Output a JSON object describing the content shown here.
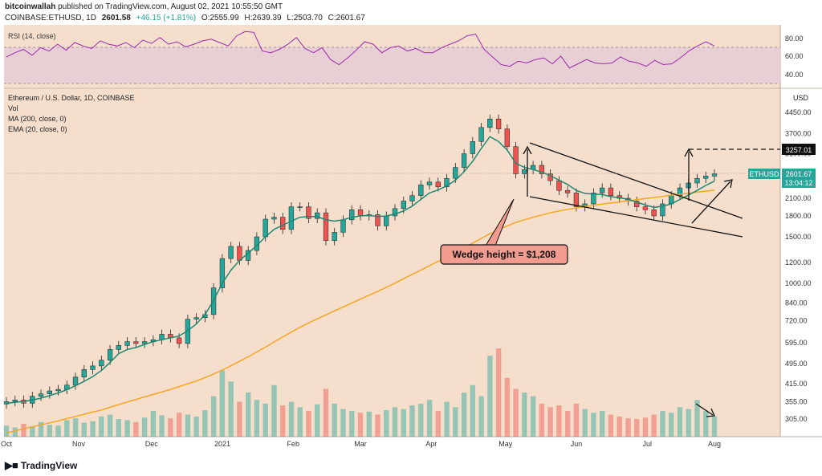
{
  "header": {
    "author": "bitcoinwallah",
    "published": "published on TradingView.com, August 02, 2021 10:55:50 GMT",
    "symbol_line": "COINBASE:ETHUSD, 1D",
    "last": "2601.58",
    "change": "+46.15 (+1.81%)",
    "ohlc_open": "O:2555.99",
    "ohlc_high": "H:2639.39",
    "ohlc_low": "L:2503.70",
    "ohlc_close": "C:2601.67"
  },
  "rsi_panel": {
    "label": "RSI (14, close)",
    "ticks": [
      "80.00",
      "60.00",
      "40.00"
    ]
  },
  "main_panel": {
    "title": "Ethereum / U.S. Dollar, 1D, COINBASE",
    "indicators": [
      "Vol",
      "MA (200, close, 0)",
      "EMA (20, close, 0)"
    ],
    "currency": "USD"
  },
  "annotations": {
    "wedge_label": "Wedge height = $1,208",
    "target_label": "3257.01",
    "price_tag": "ETHUSD",
    "price_value": "2601.67",
    "countdown": "13:04:12"
  },
  "footer": {
    "brand": "TradingView",
    "logo": "tradingview-logo-icon"
  },
  "colors": {
    "background": "#f5dfcc",
    "up": "#26a69a",
    "down": "#ef5350",
    "ema": "#1b8a72",
    "ma200": "#f5a623",
    "rsi": "#9c27b0",
    "label_box": "#f29b8f"
  },
  "chart_data": [
    {
      "type": "line",
      "title": "RSI (14, close)",
      "ylim": [
        20,
        90
      ],
      "y_ticks": [
        80,
        60,
        40
      ],
      "series": [
        {
          "values": [
            55,
            60,
            64,
            57,
            66,
            62,
            70,
            63,
            72,
            68,
            65,
            74,
            70,
            68,
            72,
            66,
            75,
            71,
            78,
            70,
            73,
            67,
            70,
            74,
            76,
            72,
            68,
            80,
            85,
            84,
            62,
            60,
            64,
            70,
            78,
            65,
            60,
            66,
            52,
            46,
            54,
            63,
            73,
            70,
            60,
            66,
            68,
            62,
            65,
            60,
            60,
            66,
            70,
            74,
            80,
            82,
            64,
            55,
            46,
            44,
            50,
            48,
            52,
            54,
            47,
            56,
            42,
            47,
            52,
            48,
            47,
            48,
            55,
            50,
            48,
            44,
            51,
            46,
            47,
            54,
            62,
            68,
            73,
            68
          ]
        }
      ]
    },
    {
      "type": "candlestick",
      "title": "Ethereum / U.S. Dollar, 1D, COINBASE",
      "x_ticks": [
        "Oct",
        "Nov",
        "Dec",
        "2021",
        "Feb",
        "Mar",
        "Apr",
        "May",
        "Jun",
        "Jul",
        "Aug"
      ],
      "y_ticks": [
        4450,
        3700,
        3100,
        2600,
        2100,
        1800,
        1500,
        1200,
        1000,
        840,
        720,
        595,
        495,
        415,
        355,
        305
      ],
      "scale": "log",
      "closes": [
        355,
        360,
        350,
        372,
        380,
        390,
        395,
        410,
        440,
        470,
        485,
        510,
        560,
        580,
        600,
        590,
        600,
        610,
        640,
        620,
        590,
        730,
        740,
        760,
        960,
        1240,
        1380,
        1220,
        1330,
        1500,
        1750,
        1780,
        1600,
        1950,
        1950,
        1760,
        1850,
        1450,
        1560,
        1740,
        1900,
        1800,
        1820,
        1650,
        1800,
        1920,
        2050,
        2150,
        2360,
        2420,
        2320,
        2500,
        2750,
        3100,
        3450,
        3900,
        4200,
        3850,
        3300,
        2600,
        2700,
        2800,
        2600,
        2450,
        2250,
        2200,
        1950,
        2000,
        2200,
        2300,
        2150,
        2100,
        2050,
        1950,
        1900,
        1800,
        2000,
        2150,
        2300,
        2400,
        2500,
        2550,
        2602
      ],
      "ema20": [
        350,
        353,
        356,
        360,
        366,
        374,
        383,
        394,
        408,
        424,
        442,
        466,
        500,
        540,
        560,
        570,
        585,
        600,
        610,
        620,
        630,
        660,
        700,
        760,
        860,
        1000,
        1120,
        1220,
        1300,
        1390,
        1500,
        1600,
        1660,
        1720,
        1780,
        1790,
        1790,
        1740,
        1720,
        1740,
        1780,
        1800,
        1810,
        1790,
        1800,
        1830,
        1880,
        1960,
        2080,
        2200,
        2260,
        2340,
        2460,
        2650,
        2900,
        3250,
        3600,
        3450,
        3200,
        2850,
        2750,
        2700,
        2640,
        2560,
        2460,
        2370,
        2250,
        2190,
        2180,
        2170,
        2130,
        2110,
        2080,
        2030,
        1980,
        1940,
        1960,
        2000,
        2080,
        2160,
        2250,
        2350,
        2440
      ],
      "ma200": [
        270,
        275,
        280,
        285,
        290,
        295,
        300,
        306,
        312,
        318,
        324,
        330,
        338,
        346,
        354,
        362,
        370,
        378,
        386,
        395,
        405,
        415,
        425,
        438,
        452,
        468,
        486,
        505,
        525,
        548,
        572,
        598,
        625,
        652,
        680,
        706,
        732,
        758,
        785,
        812,
        840,
        870,
        900,
        930,
        965,
        1000,
        1040,
        1080,
        1120,
        1165,
        1210,
        1260,
        1310,
        1365,
        1420,
        1480,
        1540,
        1600,
        1650,
        1700,
        1740,
        1780,
        1815,
        1850,
        1880,
        1905,
        1930,
        1955,
        1975,
        1995,
        2015,
        2035,
        2055,
        2075,
        2095,
        2115,
        2135,
        2155,
        2175,
        2195,
        2215,
        2235,
        2255
      ],
      "volume": [
        30,
        25,
        35,
        28,
        40,
        32,
        30,
        45,
        50,
        38,
        42,
        55,
        60,
        48,
        45,
        40,
        52,
        70,
        58,
        50,
        65,
        60,
        55,
        72,
        110,
        180,
        150,
        95,
        120,
        100,
        90,
        140,
        85,
        95,
        80,
        70,
        88,
        130,
        90,
        75,
        70,
        65,
        68,
        60,
        72,
        80,
        75,
        85,
        90,
        100,
        70,
        95,
        80,
        120,
        140,
        110,
        220,
        240,
        160,
        130,
        120,
        110,
        90,
        80,
        85,
        70,
        90,
        75,
        65,
        70,
        60,
        55,
        50,
        48,
        52,
        60,
        70,
        65,
        80,
        75,
        100,
        70,
        55
      ],
      "target": 3257.01,
      "last_price": 2601.67,
      "wedge_height": 1208
    }
  ]
}
